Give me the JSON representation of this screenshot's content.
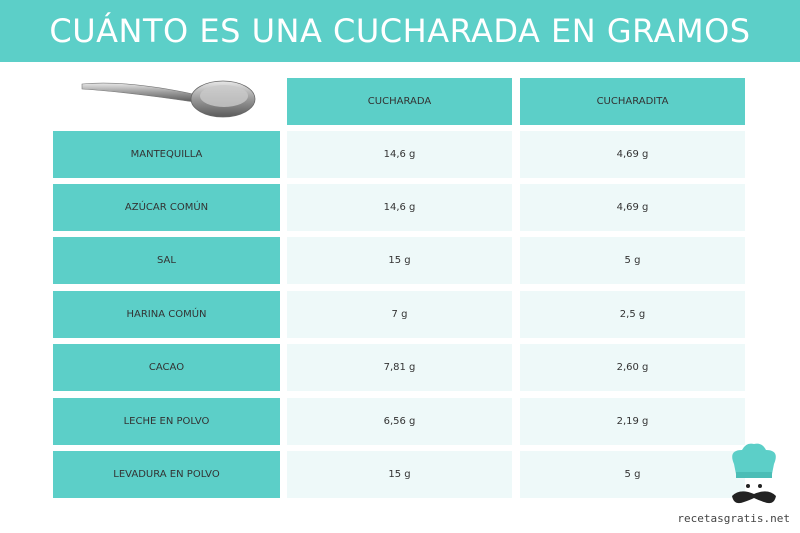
{
  "header": {
    "title": "CUÁNTO ES UNA CUCHARADA EN GRAMOS"
  },
  "table": {
    "columns": [
      "CUCHARADA",
      "CUCHARADITA"
    ],
    "rows": [
      [
        "MANTEQUILLA",
        "14,6 g",
        "4,69 g"
      ],
      [
        "AZÚCAR COMÚN",
        "14,6 g",
        "4,69 g"
      ],
      [
        "SAL",
        "15 g",
        "5 g"
      ],
      [
        "HARINA COMÚN",
        "7 g",
        "2,5 g"
      ],
      [
        "CACAO",
        "7,81 g",
        "2,60 g"
      ],
      [
        "LECHE EN POLVO",
        "6,56 g",
        "2,19 g"
      ],
      [
        "LEVADURA EN POLVO",
        "15 g",
        "5 g"
      ]
    ]
  },
  "footer": {
    "site": "recetasgratis.net"
  }
}
